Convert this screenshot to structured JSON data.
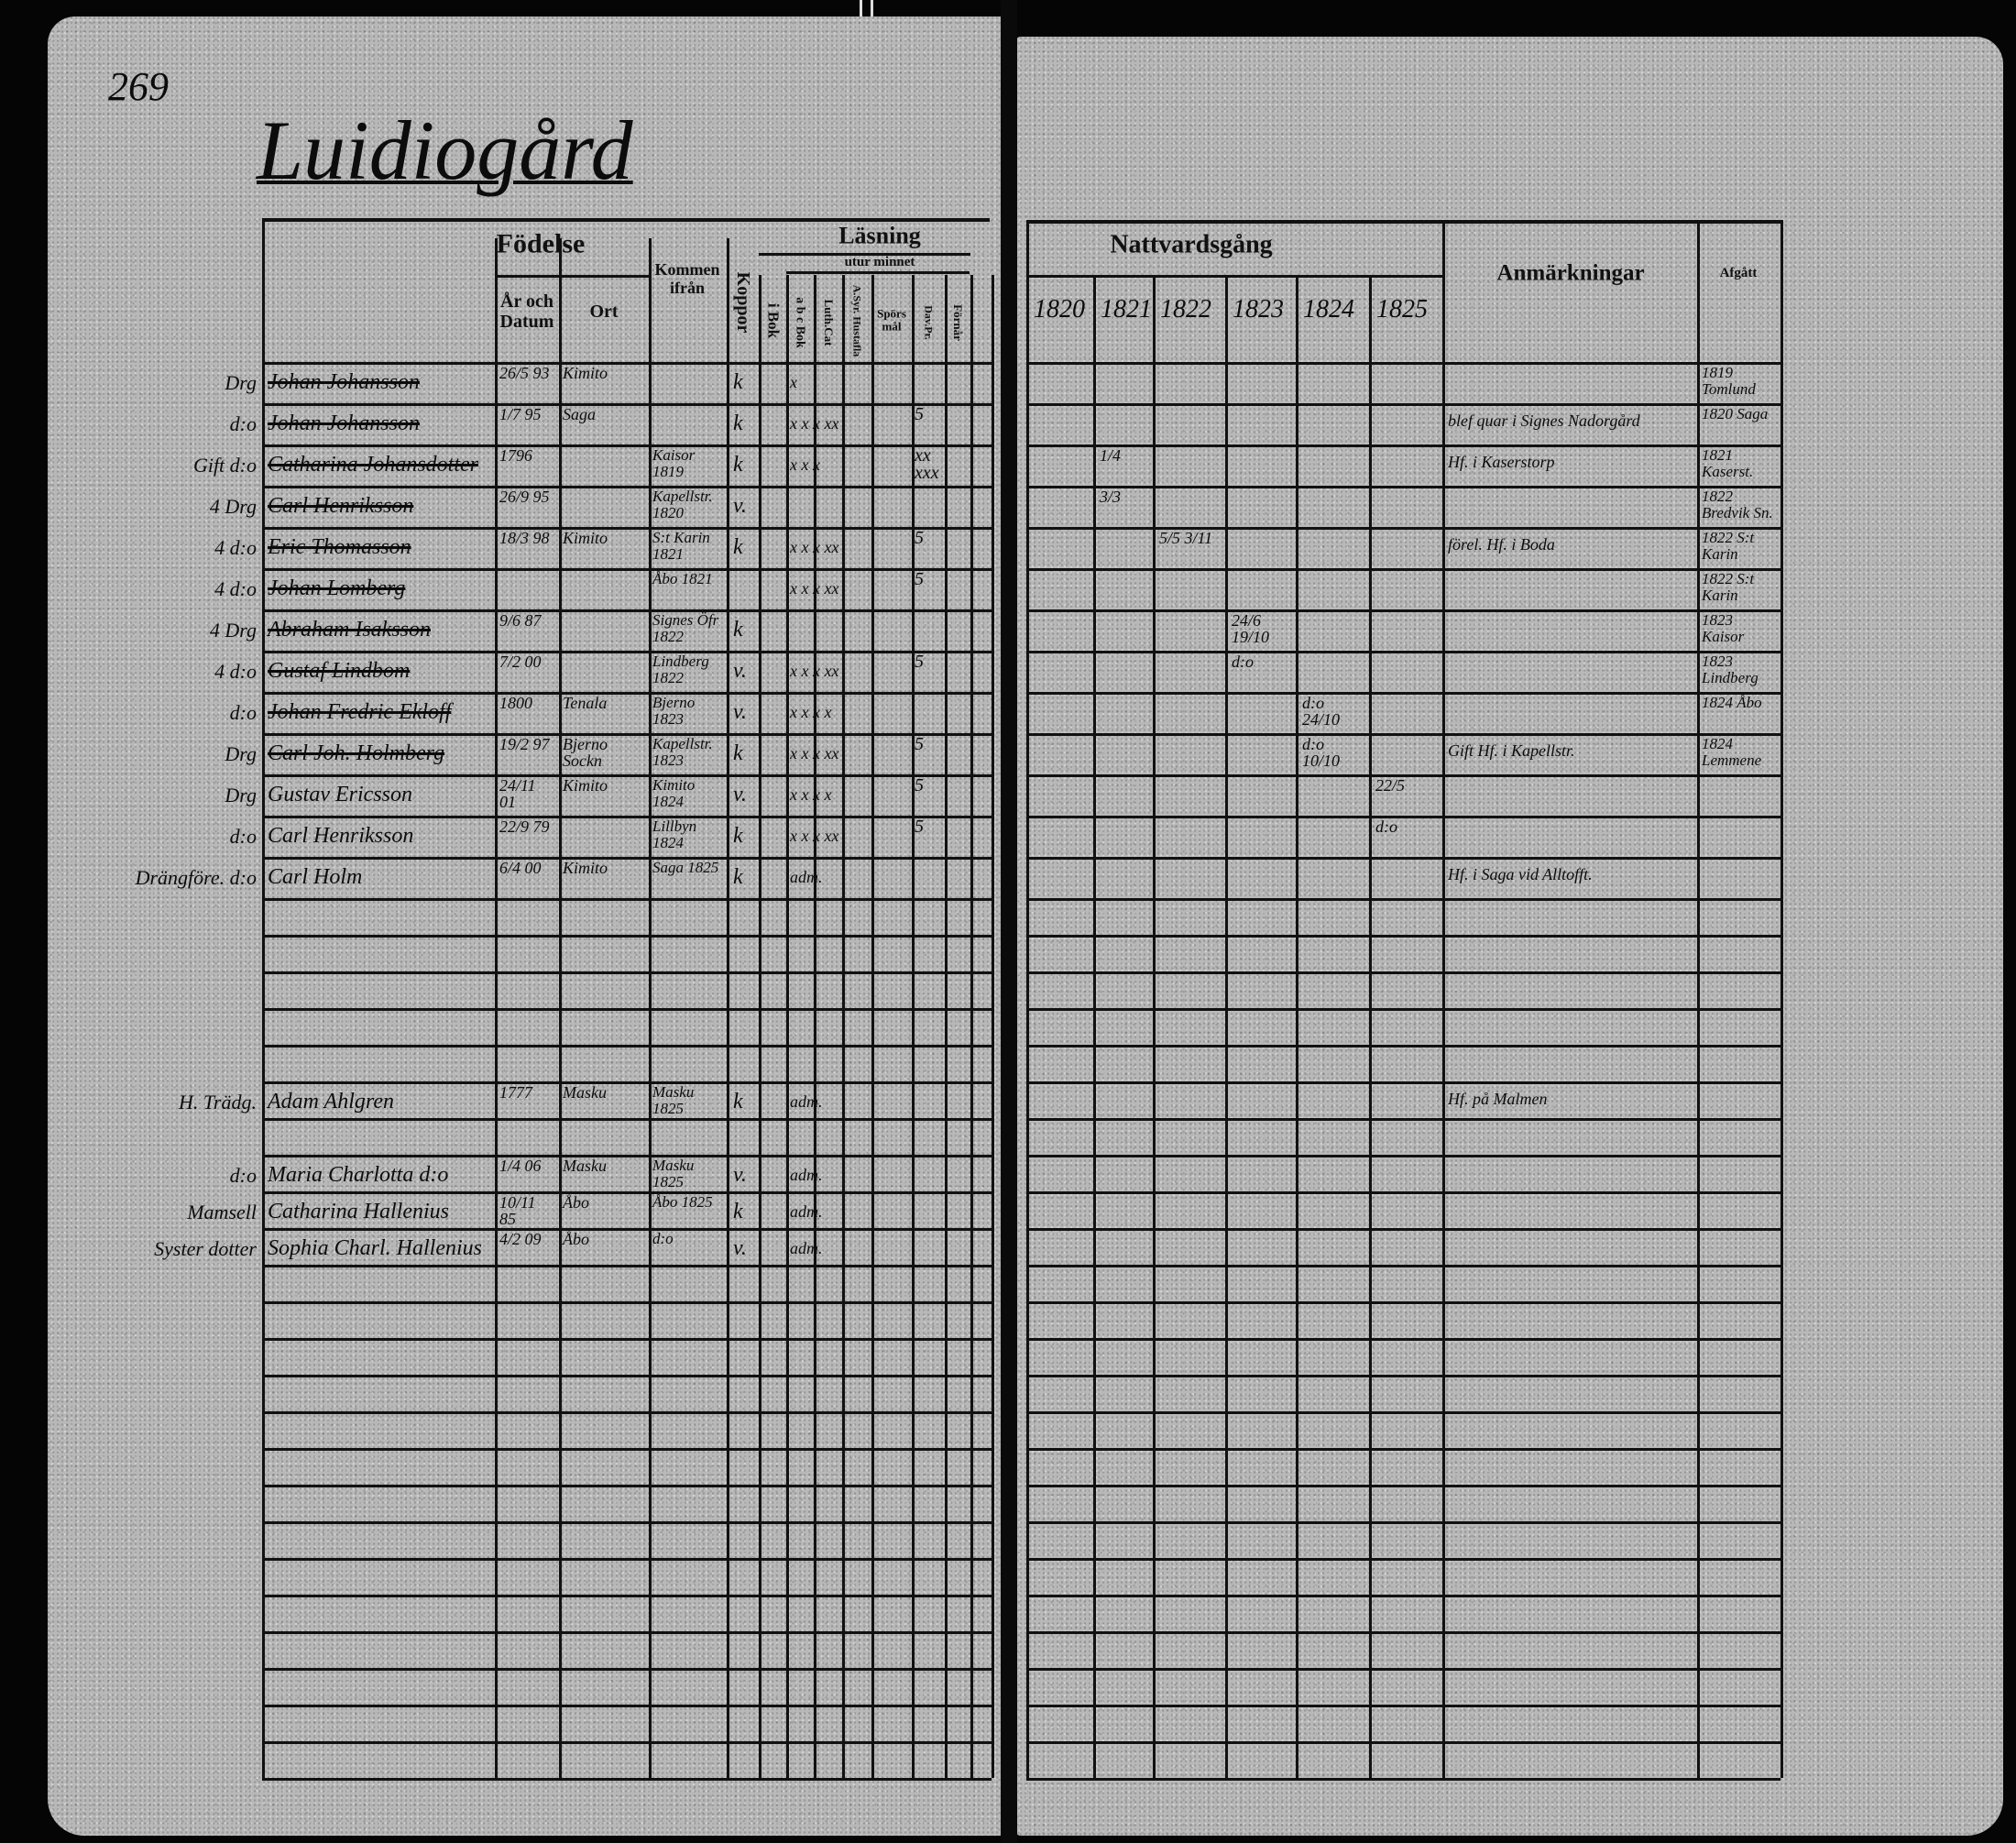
{
  "page_number": "269",
  "farm_title": "Luidiogård",
  "left_headers": {
    "birth": "Födelse",
    "year_date": "År och Datum",
    "place": "Ort",
    "came_from": "Kommen ifrån",
    "smallpox": "Koppor",
    "reading": "Läsning",
    "by_heart": "utur minnet",
    "in_book": "i Bok",
    "abc_book": "a b c Bok",
    "luth_cat": "Luth.Cat",
    "a_syr_hustafla": "A.Syr. Hustafla",
    "questions": "Spörsmål",
    "dav_pr": "Dav.Pr.",
    "understanding": "Förnår"
  },
  "right_headers": {
    "communion": "Nattvardsgång",
    "years": [
      "1820",
      "1821",
      "1822",
      "1823",
      "1824",
      "1825"
    ],
    "remarks": "Anmärkningar",
    "departed": "Afgått"
  },
  "persons": [
    {
      "margin": "Drg",
      "name": "Johan Johansson",
      "born": "26/5 93",
      "place": "Kimito",
      "from": "",
      "smallpox": "k",
      "reading": "x",
      "score": "",
      "struck": true
    },
    {
      "margin": "d:o",
      "name": "Johan Johansson",
      "born": "1/7 95",
      "place": "Saga",
      "from": "",
      "smallpox": "k",
      "reading": "x x x xx",
      "score": "5",
      "struck": true
    },
    {
      "margin": "Gift d:o",
      "name": "Catharina Johansdotter",
      "born": "1796",
      "place": "",
      "from": "Kaisor 1819",
      "smallpox": "k",
      "reading": "x x x",
      "score": "xx xxx",
      "struck": true
    },
    {
      "margin": "4 Drg",
      "name": "Carl Henriksson",
      "born": "26/9 95",
      "place": "",
      "from": "Kapellstr. 1820",
      "smallpox": "v.",
      "reading": "",
      "score": "",
      "struck": true
    },
    {
      "margin": "4 d:o",
      "name": "Eric Thomasson",
      "born": "18/3 98",
      "place": "Kimito",
      "from": "S:t Karin 1821",
      "smallpox": "k",
      "reading": "x x x xx",
      "score": "5",
      "struck": true
    },
    {
      "margin": "4 d:o",
      "name": "Johan Lomberg",
      "born": "",
      "place": "",
      "from": "Åbo 1821",
      "smallpox": "",
      "reading": "x x x xx",
      "score": "5",
      "struck": true
    },
    {
      "margin": "4 Drg",
      "name": "Abraham Isaksson",
      "born": "9/6 87",
      "place": "",
      "from": "Signes Öfr 1822",
      "smallpox": "k",
      "reading": "",
      "score": "",
      "struck": true
    },
    {
      "margin": "4 d:o",
      "name": "Gustaf Lindbom",
      "born": "7/2 00",
      "place": "",
      "from": "Lindberg 1822",
      "smallpox": "v.",
      "reading": "x x x xx",
      "score": "5",
      "struck": true
    },
    {
      "margin": "d:o",
      "name": "Johan Fredric Ekloff",
      "born": "1800",
      "place": "Tenala",
      "from": "Bjerno 1823",
      "smallpox": "v.",
      "reading": "x x x x",
      "score": "",
      "struck": true
    },
    {
      "margin": "Drg",
      "name": "Carl Joh. Holmberg",
      "born": "19/2 97",
      "place": "Bjerno Sockn",
      "from": "Kapellstr. 1823",
      "smallpox": "k",
      "reading": "x x x xx",
      "score": "5",
      "struck": true
    },
    {
      "margin": "Drg",
      "name": "Gustav Ericsson",
      "born": "24/11 01",
      "place": "Kimito",
      "from": "Kimito 1824",
      "smallpox": "v.",
      "reading": "x x x x",
      "score": "5",
      "struck": false
    },
    {
      "margin": "d:o",
      "name": "Carl Henriksson",
      "born": "22/9 79",
      "place": "",
      "from": "Lillbyn 1824",
      "smallpox": "k",
      "reading": "x x x xx",
      "score": "5",
      "struck": false
    },
    {
      "margin": "Drängföre. d:o",
      "name": "Carl Holm",
      "born": "6/4 00",
      "place": "Kimito",
      "from": "Saga 1825",
      "smallpox": "k",
      "reading": "adm.",
      "score": "",
      "struck": false
    },
    {
      "margin": "H. Trädg.",
      "name": "Adam Ahlgren",
      "born": "1777",
      "place": "Masku",
      "from": "Masku 1825",
      "smallpox": "k",
      "reading": "adm.",
      "score": "",
      "struck": false
    },
    {
      "margin": "d:o",
      "name": "Maria Charlotta d:o",
      "born": "1/4 06",
      "place": "Masku",
      "from": "Masku 1825",
      "smallpox": "v.",
      "reading": "adm.",
      "score": "",
      "struck": false
    },
    {
      "margin": "Mamsell",
      "name": "Catharina Hallenius",
      "born": "10/11 85",
      "place": "Åbo",
      "from": "Åbo 1825",
      "smallpox": "k",
      "reading": "adm.",
      "score": "",
      "struck": false
    },
    {
      "margin": "Syster dotter",
      "name": "Sophia Charl. Hallenius",
      "born": "4/2 09",
      "place": "Åbo",
      "from": "d:o",
      "smallpox": "v.",
      "reading": "adm.",
      "score": "",
      "struck": false
    }
  ],
  "communion_rows": [
    {
      "y1820": "",
      "y1821": "",
      "y1822": "",
      "y1823": "",
      "y1824": "",
      "y1825": "",
      "remarks": "",
      "departed": "1819 Tomlund"
    },
    {
      "y1820": "",
      "y1821": "",
      "y1822": "",
      "y1823": "",
      "y1824": "",
      "y1825": "",
      "remarks": "blef quar i Signes Nadorgård",
      "departed": "1820 Saga"
    },
    {
      "y1820": "",
      "y1821": "1/4",
      "y1822": "",
      "y1823": "",
      "y1824": "",
      "y1825": "",
      "remarks": "Hf. i Kaserstorp",
      "departed": "1821 Kaserst."
    },
    {
      "y1820": "",
      "y1821": "3/3",
      "y1822": "",
      "y1823": "",
      "y1824": "",
      "y1825": "",
      "remarks": "",
      "departed": "1822 Bredvik Sn."
    },
    {
      "y1820": "",
      "y1821": "",
      "y1822": "5/5 3/11",
      "y1823": "",
      "y1824": "",
      "y1825": "",
      "remarks": "förel. Hf. i Boda",
      "departed": "1822 S:t Karin"
    },
    {
      "y1820": "",
      "y1821": "",
      "y1822": "",
      "y1823": "",
      "y1824": "",
      "y1825": "",
      "remarks": "",
      "departed": "1822 S:t Karin"
    },
    {
      "y1820": "",
      "y1821": "",
      "y1822": "",
      "y1823": "24/6 19/10",
      "y1824": "",
      "y1825": "",
      "remarks": "",
      "departed": "1823 Kaisor"
    },
    {
      "y1820": "",
      "y1821": "",
      "y1822": "",
      "y1823": "d:o",
      "y1824": "",
      "y1825": "",
      "remarks": "",
      "departed": "1823 Lindberg"
    },
    {
      "y1820": "",
      "y1821": "",
      "y1822": "",
      "y1823": "",
      "y1824": "d:o 24/10",
      "y1825": "",
      "remarks": "",
      "departed": "1824 Åbo"
    },
    {
      "y1820": "",
      "y1821": "",
      "y1822": "",
      "y1823": "",
      "y1824": "d:o 10/10",
      "y1825": "",
      "remarks": "Gift Hf. i Kapellstr.",
      "departed": "1824 Lemmene"
    },
    {
      "y1820": "",
      "y1821": "",
      "y1822": "",
      "y1823": "",
      "y1824": "",
      "y1825": "22/5",
      "remarks": "",
      "departed": ""
    },
    {
      "y1820": "",
      "y1821": "",
      "y1822": "",
      "y1823": "",
      "y1824": "",
      "y1825": "d:o",
      "remarks": "",
      "departed": ""
    },
    {
      "y1820": "",
      "y1821": "",
      "y1822": "",
      "y1823": "",
      "y1824": "",
      "y1825": "",
      "remarks": "Hf. i Saga vid Alltofft.",
      "departed": ""
    },
    {
      "y1820": "",
      "y1821": "",
      "y1822": "",
      "y1823": "",
      "y1824": "",
      "y1825": "",
      "remarks": "Hf. på Malmen",
      "departed": ""
    }
  ]
}
